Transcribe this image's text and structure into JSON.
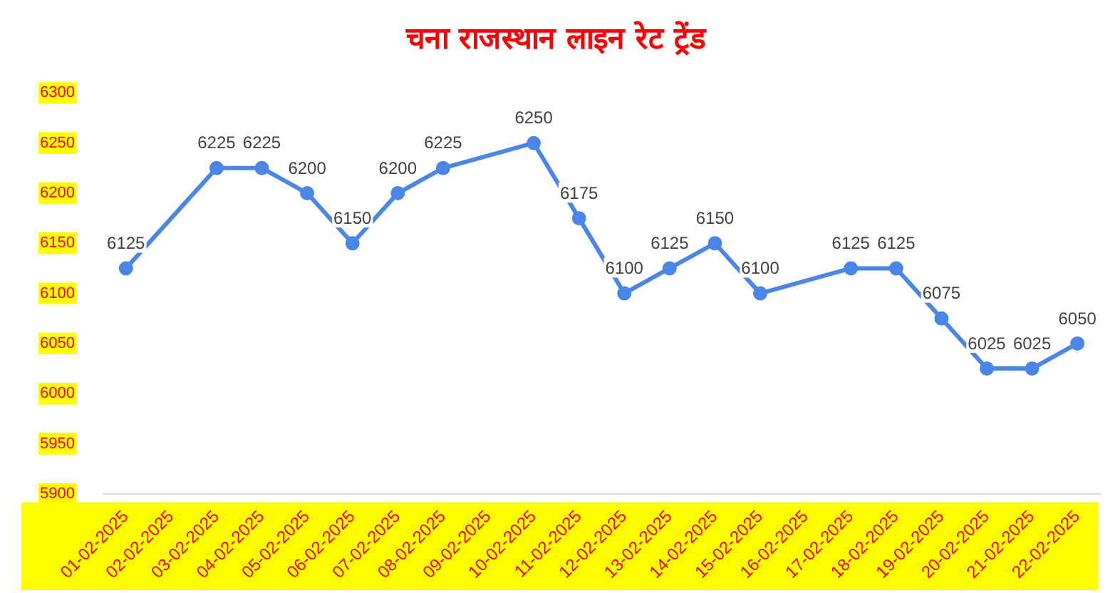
{
  "chart_data": {
    "type": "line",
    "title": "चना राजस्थान लाइन रेट ट्रेंड",
    "categories": [
      "01-02-2025",
      "02-02-2025",
      "03-02-2025",
      "04-02-2025",
      "05-02-2025",
      "06-02-2025",
      "07-02-2025",
      "08-02-2025",
      "09-02-2025",
      "10-02-2025",
      "11-02-2025",
      "12-02-2025",
      "13-02-2025",
      "14-02-2025",
      "15-02-2025",
      "16-02-2025",
      "17-02-2025",
      "18-02-2025",
      "19-02-2025",
      "20-02-2025",
      "21-02-2025",
      "22-02-2025"
    ],
    "series": [
      {
        "color": "#4a86e8",
        "values": [
          6125,
          null,
          6225,
          6225,
          6200,
          6150,
          6200,
          6225,
          null,
          6250,
          6175,
          6100,
          6125,
          6150,
          6100,
          null,
          6125,
          6125,
          6075,
          6025,
          6025,
          6050
        ]
      }
    ],
    "ylim": [
      5900,
      6300
    ],
    "yticks": [
      5900,
      5950,
      6000,
      6050,
      6100,
      6150,
      6200,
      6250,
      6300
    ],
    "grid": false,
    "legend": false,
    "marker": "circle",
    "line_style": "solid",
    "data_labels": true
  }
}
